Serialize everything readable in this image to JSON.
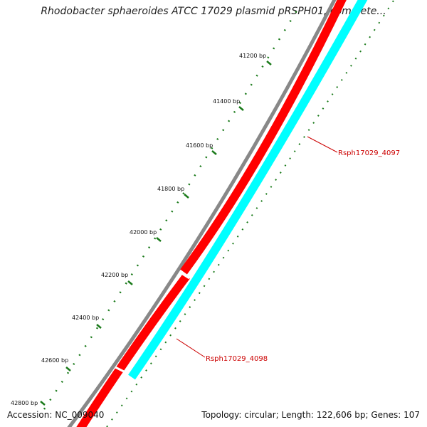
{
  "title": "Rhodobacter sphaeroides ATCC 17029 plasmid pRSPH01, complete...",
  "footer": {
    "accession": "Accession: NC_009040",
    "summary": "Topology: circular; Length: 122,606 bp; Genes: 107"
  },
  "scale": {
    "labels": [
      "41200 bp",
      "41400 bp",
      "41600 bp",
      "41800 bp",
      "42000 bp",
      "42200 bp",
      "42400 bp",
      "42600 bp",
      "42800 bp"
    ]
  },
  "genes": [
    {
      "name": "Rsph17029_4097",
      "color": "#ff0000"
    },
    {
      "name": "Rsph17029_4098",
      "color": "#ff0000"
    }
  ],
  "colors": {
    "backbone": "#888888",
    "forward_strand": "#ff0000",
    "reverse_strand": "#00ffff",
    "ticks": "#1a7a1a",
    "labels": "#cc0000"
  }
}
